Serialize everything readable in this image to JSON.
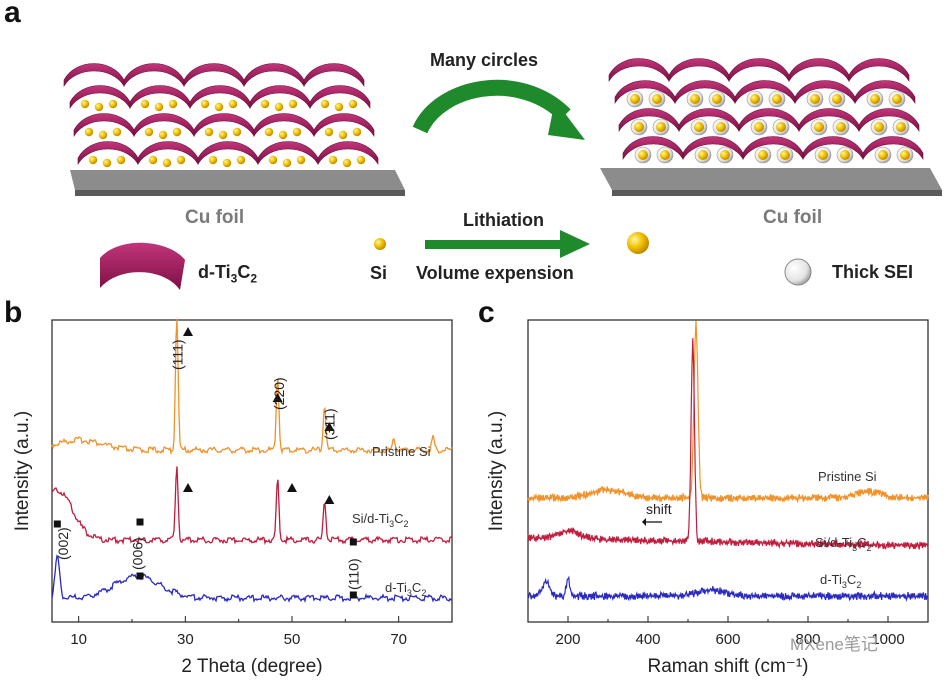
{
  "panel_a": {
    "letter": "a",
    "substrate_left": "Cu foil",
    "substrate_right": "Cu foil",
    "cycle_label": "Many circles",
    "process_line1": "Lithiation",
    "process_line2": "Volume expension",
    "legend_dti3c2_main": "d-Ti",
    "legend_dti3c2_sub1": "3",
    "legend_dti3c2_c": "C",
    "legend_dti3c2_sub2": "2",
    "legend_si": "Si",
    "legend_sei": "Thick SEI",
    "colors": {
      "sheet": "#a51c5e",
      "si": "#f2c200",
      "arrow": "#1f8a2c",
      "foil": "#8c8c8c"
    }
  },
  "chart_data": [
    {
      "panel": "b",
      "type": "line",
      "xlabel": "2 Theta (degree)",
      "ylabel": "Intensity (a.u.)",
      "xlim": [
        5,
        80
      ],
      "x_ticks": [
        10,
        30,
        50,
        70
      ],
      "series": [
        {
          "name": "Pristine Si",
          "color": "#f0922a",
          "peaks": [
            {
              "x": 28.4,
              "label": "(111)"
            },
            {
              "x": 47.3,
              "label": "(220)"
            },
            {
              "x": 56.1,
              "label": "(311)"
            },
            {
              "x": 69.1,
              "label": ""
            },
            {
              "x": 76.4,
              "label": ""
            }
          ]
        },
        {
          "name_main": "Si/d-Ti",
          "name": "Si/d-Ti3C2",
          "color": "#c01d3e",
          "peaks": [
            {
              "x": 28.4,
              "label": ""
            },
            {
              "x": 47.3,
              "label": ""
            },
            {
              "x": 56.1,
              "label": ""
            }
          ]
        },
        {
          "name_main": "d-Ti",
          "name": "d-Ti3C2",
          "color": "#2a2ac0",
          "peaks": [
            {
              "x": 6.0,
              "label": "(002)"
            },
            {
              "x": 21.0,
              "label": "(006)"
            },
            {
              "x": 61.0,
              "label": "(110)"
            }
          ]
        }
      ],
      "annotations": [
        "(111)",
        "(220)",
        "(311)",
        "(002)",
        "(006)",
        "(110)"
      ]
    },
    {
      "panel": "c",
      "type": "line",
      "xlabel": "Raman shift (cm⁻¹)",
      "ylabel": "Intensity (a.u.)",
      "xlim": [
        100,
        1100
      ],
      "x_ticks": [
        200,
        400,
        600,
        800,
        1000
      ],
      "series": [
        {
          "name": "Pristine Si",
          "color": "#f0922a",
          "peak": 520
        },
        {
          "name_main": "Si/d-Ti",
          "name": "Si/d-Ti3C2",
          "color": "#c01d3e",
          "peak": 512
        },
        {
          "name_main": "d-Ti",
          "name": "d-Ti3C2",
          "color": "#2a2ac0",
          "peaks": [
            150,
            200
          ]
        }
      ],
      "annotations": [
        "shift"
      ]
    }
  ],
  "labels": {
    "b_letter": "b",
    "c_letter": "c",
    "sub3": "3",
    "c": "C",
    "sub2": "2",
    "watermark": "MXene笔记"
  }
}
